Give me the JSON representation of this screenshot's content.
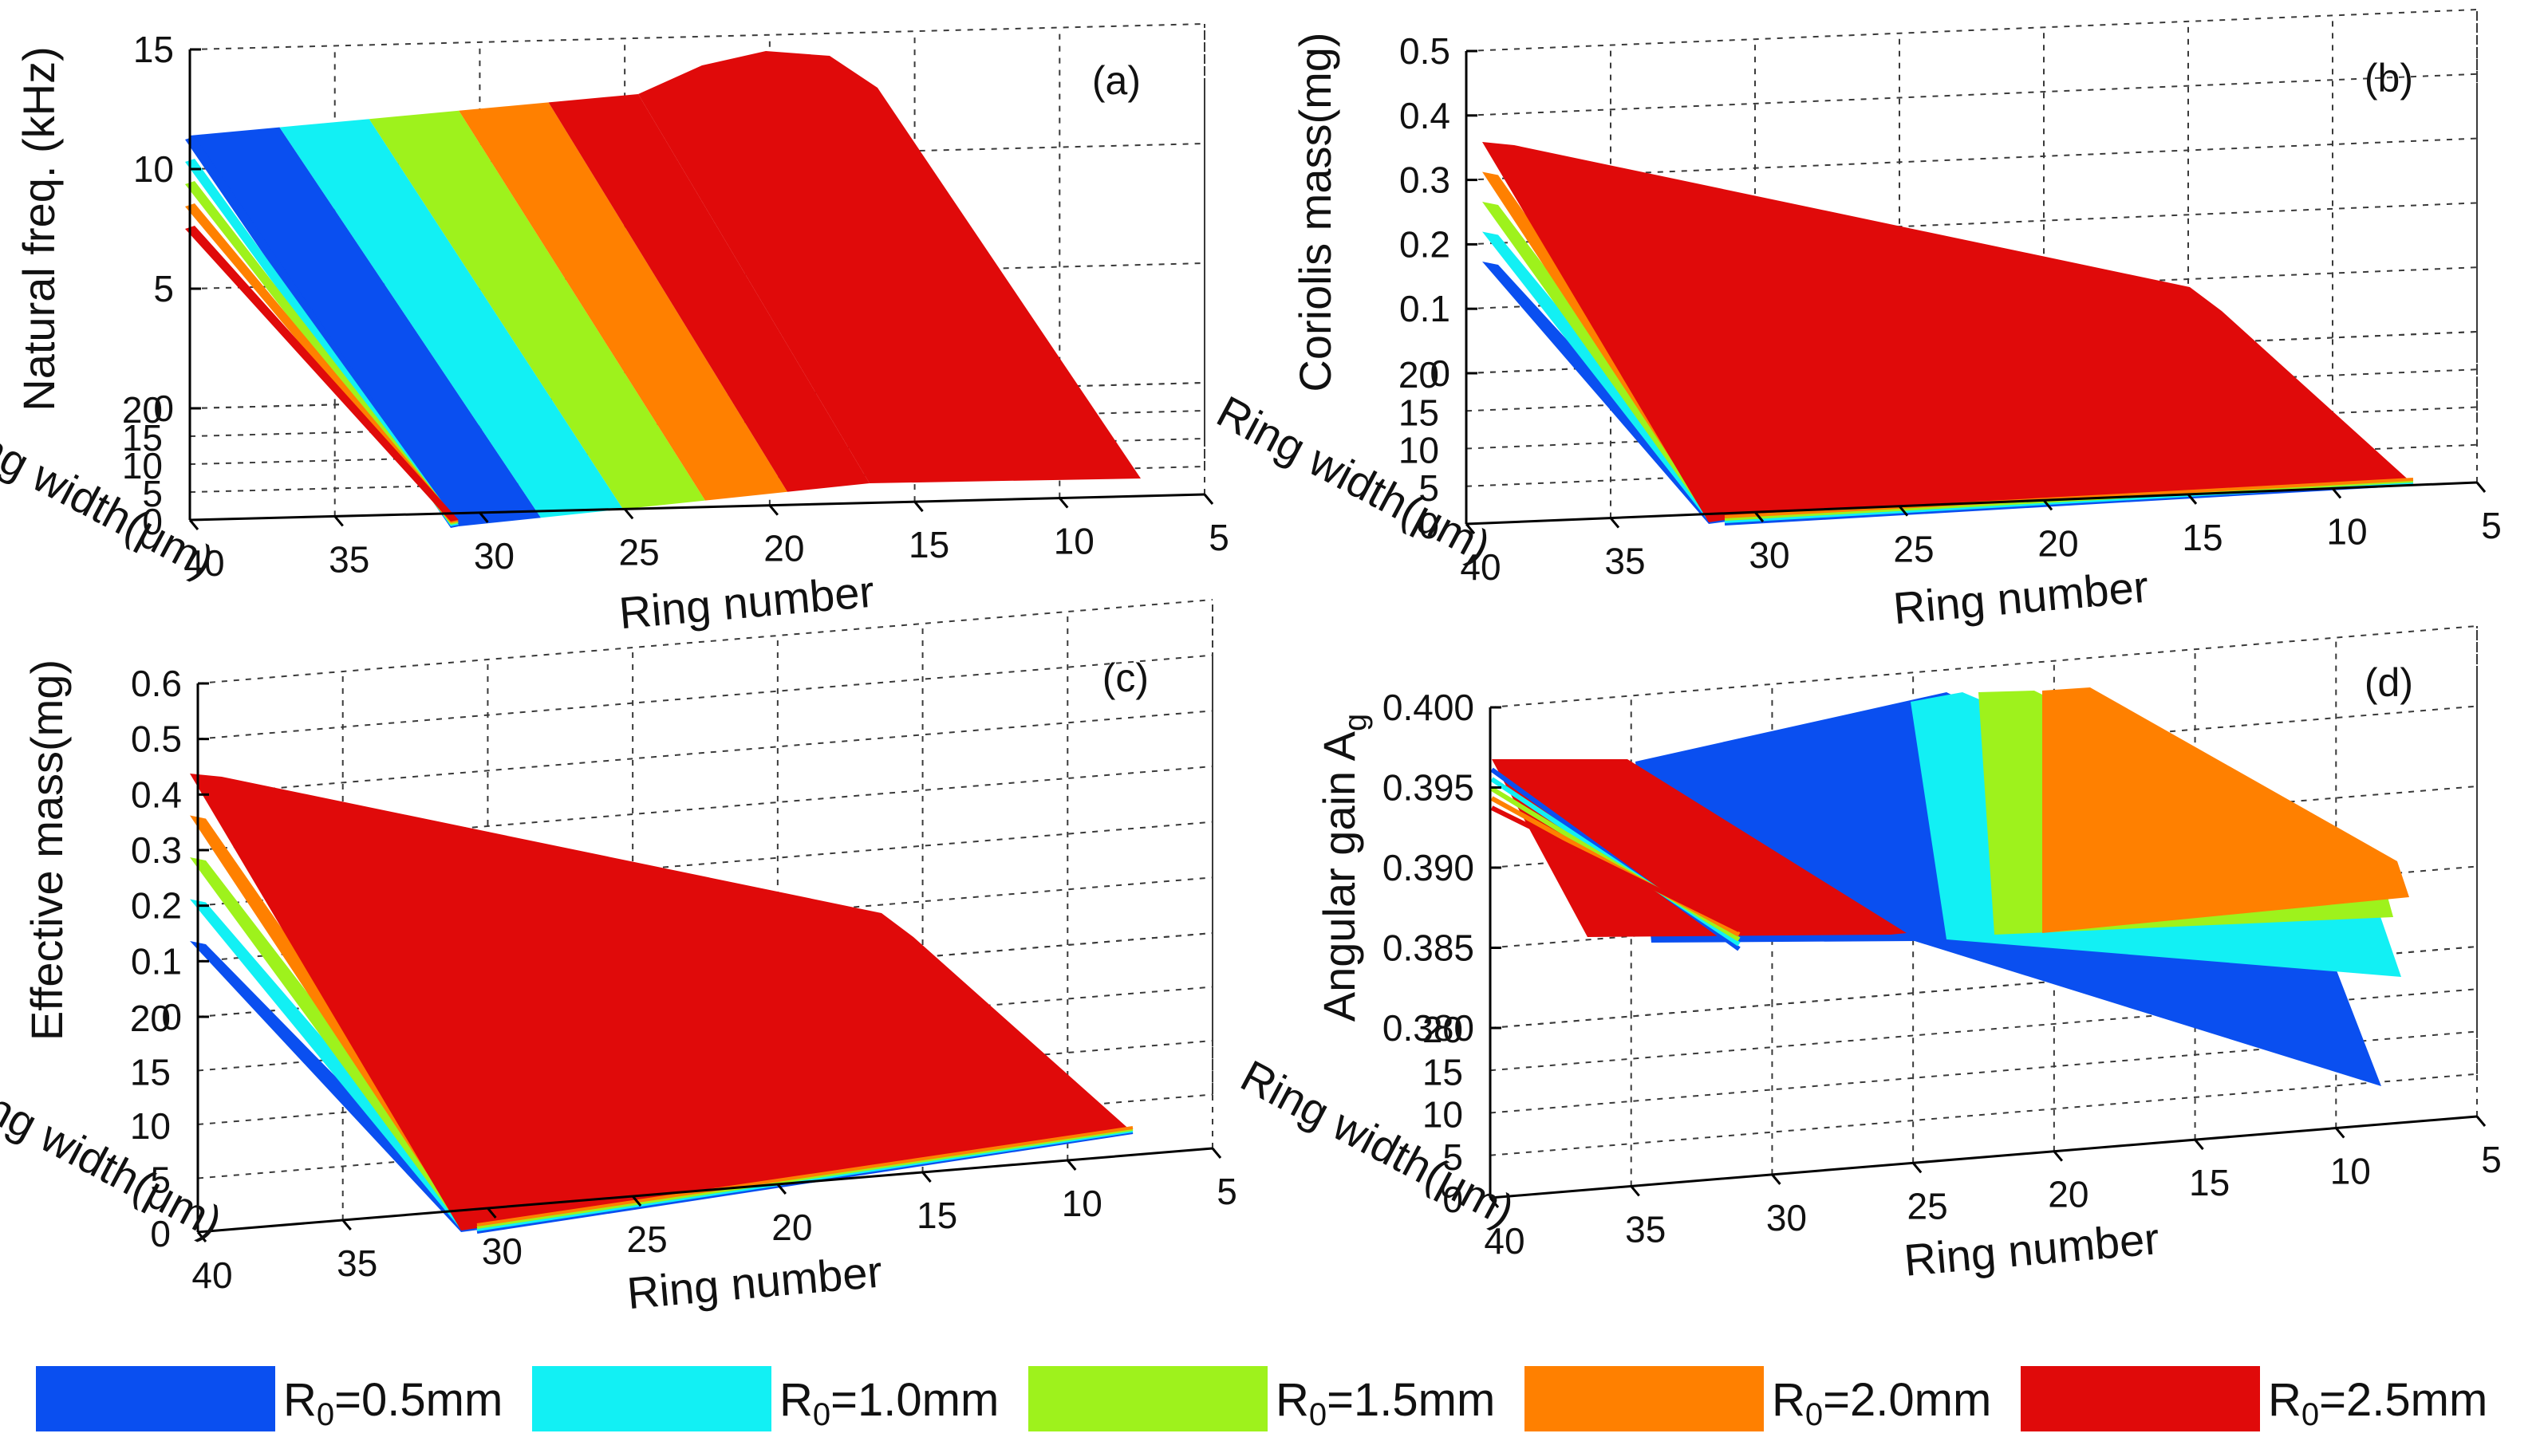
{
  "chart_data": [
    {
      "panel": "(a)",
      "type": "surface3d",
      "zlabel": "Natural freq. (kHz)",
      "ylabel": "Ring width(μm)",
      "xlabel": "Ring number",
      "ztick_labels": [
        "0",
        "5",
        "10",
        "15"
      ],
      "ytick_labels": [
        "0",
        "5",
        "10",
        "15",
        "20"
      ],
      "xtick_labels": [
        "40",
        "35",
        "30",
        "25",
        "20",
        "15",
        "10",
        "5"
      ],
      "zlim": [
        0,
        15
      ],
      "xlim": [
        5,
        40
      ],
      "ylim": [
        0,
        20
      ],
      "series": [
        {
          "name": "R0=0.5mm",
          "peak": 12.9
        },
        {
          "name": "R0=1.0mm",
          "peak": 13.4
        },
        {
          "name": "R0=1.5mm",
          "peak": 13.9
        },
        {
          "name": "R0=2.0mm",
          "peak": 14.3
        },
        {
          "name": "R0=2.5mm",
          "peak": 14.9
        }
      ]
    },
    {
      "panel": "(b)",
      "type": "surface3d",
      "zlabel": "Coriolis mass(mg)",
      "ylabel": "Ring width(μm)",
      "xlabel": "Ring number",
      "ztick_labels": [
        "0",
        "0.1",
        "0.2",
        "0.3",
        "0.4",
        "0.5"
      ],
      "ytick_labels": [
        "0",
        "5",
        "10",
        "15",
        "20"
      ],
      "xtick_labels": [
        "40",
        "35",
        "30",
        "25",
        "20",
        "15",
        "10",
        "5"
      ],
      "zlim": [
        0,
        0.5
      ],
      "xlim": [
        5,
        40
      ],
      "ylim": [
        0,
        20
      ],
      "series": [
        {
          "name": "R0=0.5mm",
          "peak": 0.2
        },
        {
          "name": "R0=1.0mm",
          "peak": 0.24
        },
        {
          "name": "R0=1.5mm",
          "peak": 0.28
        },
        {
          "name": "R0=2.0mm",
          "peak": 0.32
        },
        {
          "name": "R0=2.5mm",
          "peak": 0.39
        }
      ]
    },
    {
      "panel": "(c)",
      "type": "surface3d",
      "zlabel": "Effective mass(mg)",
      "ylabel": "Ring width(μm)",
      "xlabel": "Ring number",
      "ztick_labels": [
        "0",
        "0.1",
        "0.2",
        "0.3",
        "0.4",
        "0.5",
        "0.6"
      ],
      "ytick_labels": [
        "0",
        "5",
        "10",
        "15",
        "20"
      ],
      "xtick_labels": [
        "40",
        "35",
        "30",
        "25",
        "20",
        "15",
        "10",
        "5"
      ],
      "zlim": [
        0,
        0.6
      ],
      "xlim": [
        5,
        40
      ],
      "ylim": [
        0,
        20
      ],
      "series": [
        {
          "name": "R0=0.5mm",
          "peak": 0.26
        },
        {
          "name": "R0=1.0mm",
          "peak": 0.3
        },
        {
          "name": "R0=1.5mm",
          "peak": 0.35
        },
        {
          "name": "R0=2.0mm",
          "peak": 0.41
        },
        {
          "name": "R0=2.5mm",
          "peak": 0.49
        }
      ]
    },
    {
      "panel": "(d)",
      "type": "surface3d",
      "zlabel": "Angular gain A",
      "zlabel_sub": "g",
      "ylabel": "Ring width(μm)",
      "xlabel": "Ring number",
      "ztick_labels": [
        "0.380",
        "0.385",
        "0.390",
        "0.395",
        "0.400"
      ],
      "ytick_labels": [
        "0",
        "5",
        "10",
        "15",
        "20"
      ],
      "xtick_labels": [
        "40",
        "35",
        "30",
        "25",
        "20",
        "15",
        "10",
        "5"
      ],
      "zlim": [
        0.38,
        0.4
      ],
      "xlim": [
        5,
        40
      ],
      "ylim": [
        0,
        20
      ],
      "series": [
        {
          "name": "R0=0.5mm",
          "peak": 0.3995
        },
        {
          "name": "R0=1.0mm",
          "peak": 0.3998
        },
        {
          "name": "R0=1.5mm",
          "peak": 0.3999
        },
        {
          "name": "R0=2.0mm",
          "peak": 0.3999
        },
        {
          "name": "R0=2.5mm",
          "peak": 0.397
        }
      ]
    }
  ],
  "legend": {
    "items": [
      {
        "prefix": "R",
        "sub": "0",
        "suffix": "=0.5mm",
        "color": "#0a4ff0"
      },
      {
        "prefix": "R",
        "sub": "0",
        "suffix": "=1.0mm",
        "color": "#12f0f4"
      },
      {
        "prefix": "R",
        "sub": "0",
        "suffix": "=1.5mm",
        "color": "#9ef21c"
      },
      {
        "prefix": "R",
        "sub": "0",
        "suffix": "=2.0mm",
        "color": "#ff8000"
      },
      {
        "prefix": "R",
        "sub": "0",
        "suffix": "=2.5mm",
        "color": "#e00a0a"
      }
    ]
  }
}
